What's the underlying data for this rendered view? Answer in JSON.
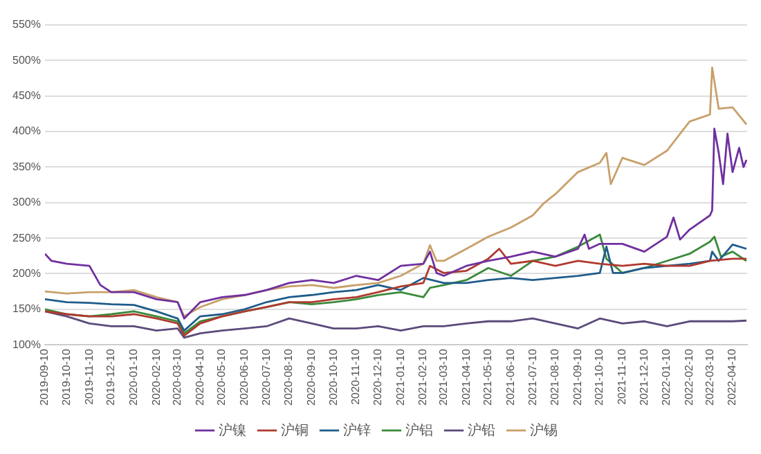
{
  "chart_data": {
    "type": "line",
    "xlim": [
      "2019-09-10",
      "2022-04-30"
    ],
    "xticks": [
      "2019-09-10",
      "2019-10-10",
      "2019-11-10",
      "2019-12-10",
      "2020-01-10",
      "2020-02-10",
      "2020-03-10",
      "2020-04-10",
      "2020-05-10",
      "2020-06-10",
      "2020-07-10",
      "2020-08-10",
      "2020-09-10",
      "2020-10-10",
      "2020-11-10",
      "2020-12-10",
      "2021-01-10",
      "2021-02-10",
      "2021-03-10",
      "2021-04-10",
      "2021-05-10",
      "2021-06-10",
      "2021-07-10",
      "2021-08-10",
      "2021-09-10",
      "2021-10-10",
      "2021-11-10",
      "2021-12-10",
      "2022-01-10",
      "2022-02-10",
      "2022-03-10",
      "2022-04-10"
    ],
    "ylim": [
      100,
      550
    ],
    "yticks": [
      {
        "value": 100,
        "label": "100%"
      },
      {
        "value": 150,
        "label": "150%"
      },
      {
        "value": 200,
        "label": "200%"
      },
      {
        "value": 250,
        "label": "250%"
      },
      {
        "value": 300,
        "label": "300%"
      },
      {
        "value": 350,
        "label": "350%"
      },
      {
        "value": 400,
        "label": "400%"
      },
      {
        "value": 450,
        "label": "450%"
      },
      {
        "value": 500,
        "label": "500%"
      },
      {
        "value": 550,
        "label": "550%"
      }
    ],
    "grid": "y",
    "legend": "bottom",
    "marker": "none",
    "line_style": "solid",
    "series": [
      {
        "name": "沪镍",
        "color": "#7030a0",
        "x": [
          "2019-09-10",
          "2019-09-19",
          "2019-10-10",
          "2019-11-10",
          "2019-11-25",
          "2019-12-10",
          "2020-01-10",
          "2020-02-10",
          "2020-03-10",
          "2020-03-19",
          "2020-04-10",
          "2020-05-10",
          "2020-06-10",
          "2020-07-10",
          "2020-08-10",
          "2020-09-10",
          "2020-10-10",
          "2020-11-10",
          "2020-12-10",
          "2021-01-10",
          "2021-02-10",
          "2021-02-19",
          "2021-02-28",
          "2021-03-10",
          "2021-04-10",
          "2021-05-10",
          "2021-06-10",
          "2021-07-10",
          "2021-08-10",
          "2021-09-10",
          "2021-09-19",
          "2021-09-25",
          "2021-10-10",
          "2021-11-10",
          "2021-12-10",
          "2022-01-10",
          "2022-01-19",
          "2022-01-28",
          "2022-02-10",
          "2022-03-10",
          "2022-03-13",
          "2022-03-16",
          "2022-03-22",
          "2022-03-28",
          "2022-04-03",
          "2022-04-10",
          "2022-04-19",
          "2022-04-25",
          "2022-04-29"
        ],
        "values": [
          228,
          218,
          214,
          211,
          184,
          174,
          174,
          164,
          160,
          137,
          160,
          167,
          170,
          177,
          187,
          191,
          187,
          197,
          191,
          211,
          214,
          231,
          201,
          197,
          211,
          218,
          224,
          231,
          224,
          235,
          255,
          235,
          242,
          242,
          231,
          252,
          279,
          248,
          262,
          282,
          289,
          404,
          370,
          326,
          397,
          343,
          377,
          350,
          360
        ]
      },
      {
        "name": "沪铜",
        "color": "#b03a2e",
        "x": [
          "2019-09-10",
          "2019-10-10",
          "2019-11-10",
          "2019-12-10",
          "2020-01-10",
          "2020-02-10",
          "2020-03-10",
          "2020-03-19",
          "2020-04-10",
          "2020-05-10",
          "2020-06-10",
          "2020-07-10",
          "2020-08-10",
          "2020-09-10",
          "2020-10-10",
          "2020-11-10",
          "2020-12-10",
          "2021-01-10",
          "2021-02-10",
          "2021-02-19",
          "2021-03-10",
          "2021-04-10",
          "2021-05-10",
          "2021-05-25",
          "2021-06-10",
          "2021-07-10",
          "2021-08-10",
          "2021-09-10",
          "2021-10-10",
          "2021-11-10",
          "2021-12-10",
          "2022-01-10",
          "2022-02-10",
          "2022-03-10",
          "2022-04-10",
          "2022-04-29"
        ],
        "values": [
          147,
          143,
          140,
          140,
          143,
          137,
          130,
          113,
          130,
          140,
          147,
          153,
          160,
          160,
          164,
          167,
          174,
          182,
          187,
          211,
          201,
          204,
          221,
          235,
          214,
          218,
          211,
          218,
          214,
          211,
          214,
          211,
          211,
          218,
          221,
          221
        ]
      },
      {
        "name": "沪锌",
        "color": "#1f5c8b",
        "x": [
          "2019-09-10",
          "2019-10-10",
          "2019-11-10",
          "2019-12-10",
          "2020-01-10",
          "2020-02-10",
          "2020-03-10",
          "2020-03-19",
          "2020-04-10",
          "2020-05-10",
          "2020-06-10",
          "2020-07-10",
          "2020-08-10",
          "2020-09-10",
          "2020-10-10",
          "2020-11-10",
          "2020-12-10",
          "2021-01-10",
          "2021-02-10",
          "2021-03-10",
          "2021-04-10",
          "2021-05-10",
          "2021-06-10",
          "2021-07-10",
          "2021-08-10",
          "2021-09-10",
          "2021-10-10",
          "2021-10-19",
          "2021-10-28",
          "2021-11-10",
          "2021-12-10",
          "2022-01-10",
          "2022-02-10",
          "2022-03-10",
          "2022-03-13",
          "2022-03-22",
          "2022-04-10",
          "2022-04-29"
        ],
        "values": [
          164,
          160,
          159,
          157,
          156,
          147,
          137,
          120,
          140,
          143,
          150,
          160,
          167,
          170,
          174,
          177,
          184,
          177,
          194,
          187,
          187,
          191,
          194,
          191,
          194,
          197,
          201,
          238,
          201,
          201,
          208,
          211,
          214,
          218,
          231,
          218,
          241,
          235
        ]
      },
      {
        "name": "沪铝",
        "color": "#3a8a3a",
        "x": [
          "2019-09-10",
          "2019-10-10",
          "2019-11-10",
          "2019-12-10",
          "2020-01-10",
          "2020-02-10",
          "2020-03-10",
          "2020-03-19",
          "2020-04-10",
          "2020-05-10",
          "2020-06-10",
          "2020-07-10",
          "2020-08-10",
          "2020-09-10",
          "2020-10-10",
          "2020-11-10",
          "2020-12-10",
          "2021-01-10",
          "2021-02-10",
          "2021-02-19",
          "2021-03-10",
          "2021-04-10",
          "2021-05-10",
          "2021-06-10",
          "2021-07-10",
          "2021-08-10",
          "2021-09-10",
          "2021-10-10",
          "2021-10-19",
          "2021-11-10",
          "2021-12-10",
          "2022-01-10",
          "2022-02-10",
          "2022-03-10",
          "2022-03-16",
          "2022-03-25",
          "2022-04-10",
          "2022-04-29"
        ],
        "values": [
          150,
          143,
          140,
          143,
          147,
          140,
          133,
          116,
          133,
          140,
          147,
          153,
          160,
          157,
          160,
          164,
          170,
          174,
          167,
          180,
          184,
          191,
          208,
          197,
          218,
          224,
          238,
          255,
          221,
          201,
          208,
          218,
          228,
          245,
          252,
          224,
          231,
          218
        ]
      },
      {
        "name": "沪铅",
        "color": "#5b4a7a",
        "x": [
          "2019-09-10",
          "2019-10-10",
          "2019-11-10",
          "2019-12-10",
          "2020-01-10",
          "2020-02-10",
          "2020-03-10",
          "2020-03-19",
          "2020-04-10",
          "2020-05-10",
          "2020-06-10",
          "2020-07-10",
          "2020-08-10",
          "2020-09-10",
          "2020-10-10",
          "2020-11-10",
          "2020-12-10",
          "2021-01-10",
          "2021-02-10",
          "2021-03-10",
          "2021-04-10",
          "2021-05-10",
          "2021-06-10",
          "2021-07-10",
          "2021-08-10",
          "2021-09-10",
          "2021-10-10",
          "2021-11-10",
          "2021-12-10",
          "2022-01-10",
          "2022-02-10",
          "2022-03-10",
          "2022-04-10",
          "2022-04-29"
        ],
        "values": [
          147,
          140,
          130,
          126,
          126,
          120,
          123,
          110,
          116,
          120,
          123,
          126,
          137,
          130,
          123,
          123,
          126,
          120,
          126,
          126,
          130,
          133,
          133,
          137,
          130,
          123,
          137,
          130,
          133,
          126,
          133,
          133,
          133,
          134
        ]
      },
      {
        "name": "沪锡",
        "color": "#c8a06a",
        "x": [
          "2019-09-10",
          "2019-10-10",
          "2019-11-10",
          "2019-12-10",
          "2020-01-10",
          "2020-02-10",
          "2020-03-10",
          "2020-03-19",
          "2020-04-10",
          "2020-05-10",
          "2020-06-10",
          "2020-07-10",
          "2020-08-10",
          "2020-09-10",
          "2020-10-10",
          "2020-11-10",
          "2020-12-10",
          "2021-01-10",
          "2021-02-10",
          "2021-02-19",
          "2021-02-28",
          "2021-03-10",
          "2021-04-10",
          "2021-05-10",
          "2021-06-10",
          "2021-07-10",
          "2021-07-25",
          "2021-08-10",
          "2021-09-10",
          "2021-10-10",
          "2021-10-19",
          "2021-10-25",
          "2021-11-10",
          "2021-12-10",
          "2022-01-10",
          "2022-02-10",
          "2022-03-10",
          "2022-03-13",
          "2022-03-22",
          "2022-04-10",
          "2022-04-29"
        ],
        "values": [
          175,
          172,
          174,
          174,
          177,
          167,
          160,
          140,
          153,
          164,
          170,
          177,
          182,
          184,
          180,
          184,
          187,
          197,
          214,
          240,
          218,
          218,
          235,
          252,
          265,
          282,
          299,
          312,
          343,
          356,
          370,
          326,
          363,
          353,
          373,
          414,
          424,
          490,
          432,
          434,
          410
        ]
      }
    ]
  }
}
